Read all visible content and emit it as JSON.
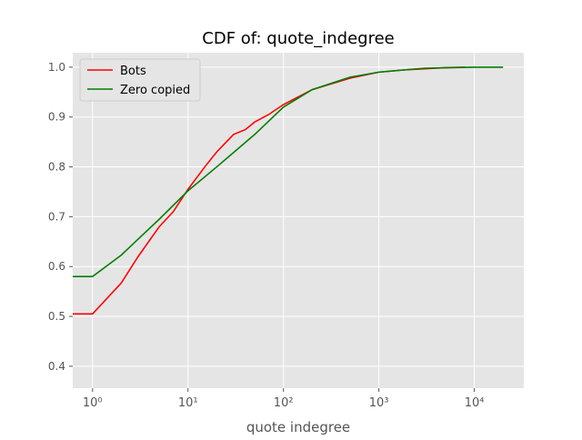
{
  "chart_data": {
    "type": "line",
    "title": "CDF of: quote_indegree",
    "x_label": "quote indegree",
    "x_scale": "log",
    "grid": true,
    "legend": "upper left",
    "xlim": [
      0.62,
      33000
    ],
    "ylim": [
      0.356,
      1.029
    ],
    "xticks": [
      {
        "value": 1,
        "label": "10⁰"
      },
      {
        "value": 10,
        "label": "10¹"
      },
      {
        "value": 100,
        "label": "10²"
      },
      {
        "value": 1000,
        "label": "10³"
      },
      {
        "value": 10000,
        "label": "10⁴"
      }
    ],
    "yticks": [
      0.4,
      0.5,
      0.6,
      0.7,
      0.8,
      0.9,
      {
        "value": 1,
        "label": "1.0"
      }
    ],
    "series": [
      {
        "name": "Bots",
        "color": "#ff0000",
        "x": [
          0.62,
          1,
          2,
          3,
          5,
          7,
          10,
          15,
          20,
          30,
          40,
          50,
          70,
          100,
          200,
          500,
          1000,
          2000,
          5000,
          8000
        ],
        "values": [
          0.505,
          0.505,
          0.567,
          0.62,
          0.68,
          0.71,
          0.755,
          0.8,
          0.83,
          0.865,
          0.875,
          0.89,
          0.905,
          0.925,
          0.955,
          0.978,
          0.99,
          0.995,
          0.999,
          1.0
        ]
      },
      {
        "name": "Zero copied",
        "color": "#008000",
        "x": [
          0.62,
          1,
          2,
          3,
          5,
          10,
          20,
          50,
          100,
          200,
          500,
          1000,
          3000,
          10000,
          20000
        ],
        "values": [
          0.58,
          0.58,
          0.623,
          0.655,
          0.695,
          0.752,
          0.8,
          0.865,
          0.92,
          0.955,
          0.98,
          0.99,
          0.998,
          1.0,
          1.0
        ]
      }
    ]
  }
}
